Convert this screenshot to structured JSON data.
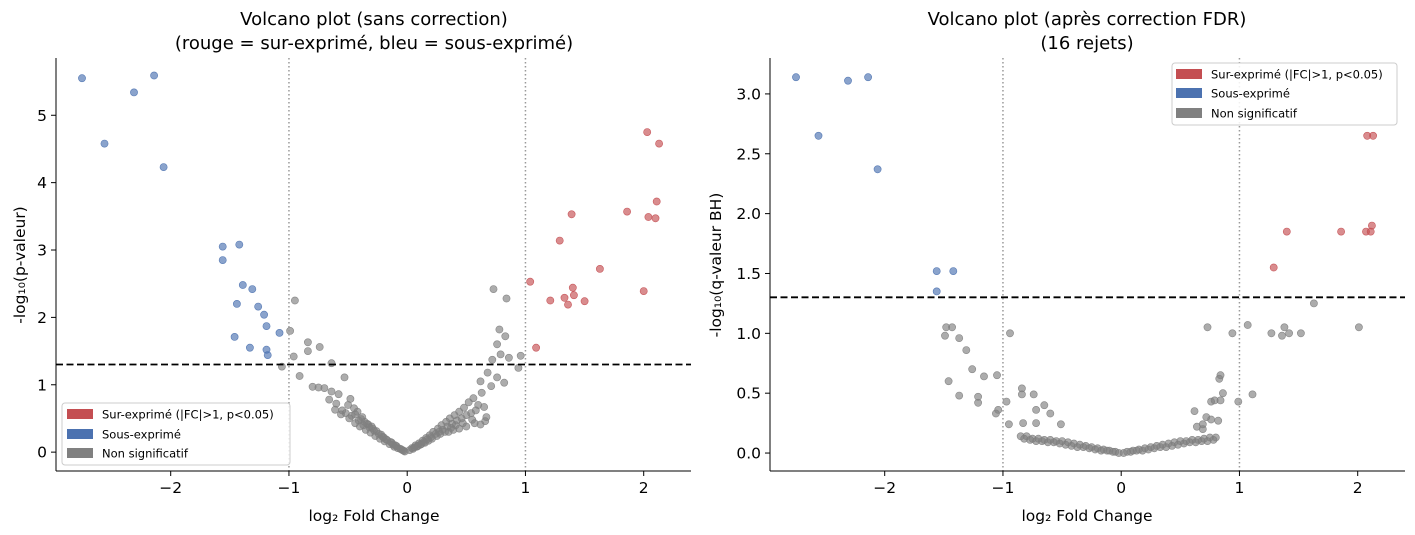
{
  "colors": {
    "up": "#c44e52",
    "down": "#4c72b0",
    "ns": "#808080"
  },
  "legend_labels": [
    "Sur-exprimé (|FC|>1, p<0.05)",
    "Sous-exprimé",
    "Non significatif"
  ],
  "chart_data": [
    {
      "type": "scatter",
      "title_lines": [
        "Volcano plot (sans correction)",
        "(rouge = sur-exprimé, bleu = sous-exprimé)"
      ],
      "xlabel": "log₂ Fold Change",
      "ylabel": "-log₁₀(p-valeur)",
      "xlim": [
        -2.97,
        2.4
      ],
      "ylim": [
        -0.28,
        5.85
      ],
      "xticks": [
        -2,
        -1,
        0,
        1,
        2
      ],
      "xtick_labels": [
        "−2",
        "−1",
        "0",
        "1",
        "2"
      ],
      "yticks": [
        0,
        1,
        2,
        3,
        4,
        5
      ],
      "ytick_labels": [
        "0",
        "1",
        "2",
        "3",
        "4",
        "5"
      ],
      "threshold_y": 1.301,
      "fc_lines": [
        -1,
        1
      ],
      "legend_position": "lower-left",
      "up": [
        [
          2.03,
          4.75
        ],
        [
          2.13,
          4.58
        ],
        [
          2.11,
          3.72
        ],
        [
          1.39,
          3.53
        ],
        [
          1.86,
          3.57
        ],
        [
          2.04,
          3.49
        ],
        [
          2.1,
          3.47
        ],
        [
          1.29,
          3.14
        ],
        [
          1.63,
          2.72
        ],
        [
          1.04,
          2.53
        ],
        [
          1.4,
          2.44
        ],
        [
          1.41,
          2.33
        ],
        [
          1.33,
          2.29
        ],
        [
          1.21,
          2.25
        ],
        [
          1.5,
          2.24
        ],
        [
          1.36,
          2.19
        ],
        [
          2.0,
          2.39
        ],
        [
          1.09,
          1.55
        ]
      ],
      "down": [
        [
          -2.75,
          5.55
        ],
        [
          -2.14,
          5.59
        ],
        [
          -2.31,
          5.34
        ],
        [
          -2.56,
          4.58
        ],
        [
          -2.06,
          4.23
        ],
        [
          -1.42,
          3.08
        ],
        [
          -1.56,
          3.05
        ],
        [
          -1.56,
          2.85
        ],
        [
          -1.39,
          2.48
        ],
        [
          -1.31,
          2.42
        ],
        [
          -1.44,
          2.2
        ],
        [
          -1.26,
          2.16
        ],
        [
          -1.21,
          2.04
        ],
        [
          -1.19,
          1.87
        ],
        [
          -1.46,
          1.71
        ],
        [
          -1.33,
          1.55
        ],
        [
          -1.19,
          1.52
        ],
        [
          -1.18,
          1.44
        ],
        [
          -1.08,
          1.77
        ]
      ],
      "ns": [
        [
          -0.95,
          2.25
        ],
        [
          -0.99,
          1.8
        ],
        [
          -0.96,
          1.42
        ],
        [
          -0.84,
          1.63
        ],
        [
          -0.74,
          1.56
        ],
        [
          -0.84,
          1.5
        ],
        [
          -0.64,
          1.32
        ],
        [
          -1.06,
          1.27
        ],
        [
          -0.91,
          1.13
        ],
        [
          -0.53,
          1.11
        ],
        [
          -0.8,
          0.97
        ],
        [
          -0.75,
          0.96
        ],
        [
          -0.7,
          0.95
        ],
        [
          -0.64,
          0.9
        ],
        [
          -0.58,
          0.86
        ],
        [
          -0.48,
          0.79
        ],
        [
          -0.66,
          0.78
        ],
        [
          -0.6,
          0.72
        ],
        [
          -0.42,
          0.6
        ],
        [
          -0.56,
          0.56
        ],
        [
          -0.49,
          0.5
        ],
        [
          -0.44,
          0.43
        ],
        [
          -0.4,
          0.38
        ],
        [
          -0.35,
          0.33
        ],
        [
          -0.31,
          0.29
        ],
        [
          -0.27,
          0.24
        ],
        [
          -0.23,
          0.2
        ],
        [
          -0.19,
          0.16
        ],
        [
          -0.15,
          0.12
        ],
        [
          -0.11,
          0.08
        ],
        [
          -0.08,
          0.06
        ],
        [
          -0.04,
          0.03
        ],
        [
          -0.02,
          0.01
        ],
        [
          -0.5,
          0.7
        ],
        [
          -0.45,
          0.65
        ],
        [
          -0.55,
          0.62
        ],
        [
          -0.38,
          0.52
        ],
        [
          -0.36,
          0.45
        ],
        [
          -0.33,
          0.41
        ],
        [
          -0.29,
          0.35
        ],
        [
          -0.26,
          0.31
        ],
        [
          -0.22,
          0.26
        ],
        [
          -0.2,
          0.22
        ],
        [
          -0.17,
          0.18
        ],
        [
          -0.13,
          0.14
        ],
        [
          -0.1,
          0.1
        ],
        [
          -0.06,
          0.05
        ],
        [
          -0.61,
          0.63
        ],
        [
          -0.52,
          0.58
        ],
        [
          -0.47,
          0.54
        ],
        [
          -0.41,
          0.47
        ],
        [
          -0.37,
          0.4
        ],
        [
          -0.32,
          0.37
        ],
        [
          -0.28,
          0.32
        ],
        [
          -0.24,
          0.27
        ],
        [
          -0.21,
          0.23
        ],
        [
          -0.18,
          0.19
        ],
        [
          -0.14,
          0.15
        ],
        [
          -0.12,
          0.11
        ],
        [
          -0.09,
          0.09
        ],
        [
          -0.05,
          0.04
        ],
        [
          -0.03,
          0.02
        ],
        [
          -0.44,
          0.56
        ],
        [
          -0.39,
          0.49
        ],
        [
          -0.34,
          0.42
        ],
        [
          -0.3,
          0.38
        ],
        [
          0.73,
          2.42
        ],
        [
          0.84,
          2.28
        ],
        [
          0.78,
          1.82
        ],
        [
          0.83,
          1.72
        ],
        [
          0.76,
          1.6
        ],
        [
          0.96,
          1.43
        ],
        [
          0.79,
          1.45
        ],
        [
          0.86,
          1.4
        ],
        [
          0.72,
          1.37
        ],
        [
          0.94,
          1.25
        ],
        [
          0.68,
          1.18
        ],
        [
          0.76,
          1.11
        ],
        [
          0.62,
          1.05
        ],
        [
          0.82,
          1.03
        ],
        [
          0.71,
          0.98
        ],
        [
          0.63,
          0.88
        ],
        [
          0.56,
          0.8
        ],
        [
          0.52,
          0.74
        ],
        [
          0.65,
          0.67
        ],
        [
          0.6,
          0.7
        ],
        [
          0.48,
          0.66
        ],
        [
          0.44,
          0.6
        ],
        [
          0.4,
          0.55
        ],
        [
          0.36,
          0.5
        ],
        [
          0.33,
          0.45
        ],
        [
          0.29,
          0.4
        ],
        [
          0.26,
          0.35
        ],
        [
          0.22,
          0.3
        ],
        [
          0.19,
          0.25
        ],
        [
          0.16,
          0.21
        ],
        [
          0.13,
          0.17
        ],
        [
          0.1,
          0.13
        ],
        [
          0.07,
          0.1
        ],
        [
          0.04,
          0.06
        ],
        [
          0.02,
          0.03
        ],
        [
          0.58,
          0.62
        ],
        [
          0.54,
          0.58
        ],
        [
          0.5,
          0.55
        ],
        [
          0.46,
          0.5
        ],
        [
          0.42,
          0.47
        ],
        [
          0.38,
          0.42
        ],
        [
          0.34,
          0.38
        ],
        [
          0.3,
          0.33
        ],
        [
          0.27,
          0.3
        ],
        [
          0.24,
          0.27
        ],
        [
          0.2,
          0.22
        ],
        [
          0.17,
          0.19
        ],
        [
          0.14,
          0.15
        ],
        [
          0.11,
          0.11
        ],
        [
          0.08,
          0.08
        ],
        [
          0.05,
          0.05
        ],
        [
          0.55,
          0.48
        ],
        [
          0.47,
          0.43
        ],
        [
          0.41,
          0.4
        ],
        [
          0.37,
          0.36
        ],
        [
          0.32,
          0.3
        ],
        [
          0.28,
          0.27
        ],
        [
          0.25,
          0.24
        ],
        [
          0.21,
          0.2
        ],
        [
          0.18,
          0.17
        ],
        [
          0.15,
          0.14
        ],
        [
          0.12,
          0.12
        ],
        [
          0.09,
          0.09
        ],
        [
          0.06,
          0.07
        ],
        [
          0.67,
          0.52
        ],
        [
          0.66,
          0.46
        ],
        [
          0.62,
          0.41
        ],
        [
          0.57,
          0.43
        ],
        [
          0.5,
          0.38
        ],
        [
          0.44,
          0.35
        ],
        [
          0.39,
          0.33
        ],
        [
          0.35,
          0.3
        ]
      ]
    },
    {
      "type": "scatter",
      "title_lines": [
        "Volcano plot (après correction FDR)",
        "(16 rejets)"
      ],
      "xlabel": "log₂ Fold Change",
      "ylabel": "-log₁₀(q-valeur BH)",
      "xlim": [
        -2.97,
        2.4
      ],
      "ylim": [
        -0.15,
        3.3
      ],
      "xticks": [
        -2,
        -1,
        0,
        1,
        2
      ],
      "xtick_labels": [
        "−2",
        "−1",
        "0",
        "1",
        "2"
      ],
      "yticks": [
        0,
        0.5,
        1,
        1.5,
        2,
        2.5,
        3
      ],
      "ytick_labels": [
        "0.0",
        "0.5",
        "1.0",
        "1.5",
        "2.0",
        "2.5",
        "3.0"
      ],
      "threshold_y": 1.301,
      "fc_lines": [
        -1,
        1
      ],
      "legend_position": "top-right",
      "up": [
        [
          2.08,
          2.65
        ],
        [
          2.13,
          2.65
        ],
        [
          2.12,
          1.9
        ],
        [
          2.07,
          1.85
        ],
        [
          2.11,
          1.85
        ],
        [
          1.4,
          1.85
        ],
        [
          1.86,
          1.85
        ],
        [
          1.29,
          1.55
        ]
      ],
      "down": [
        [
          -2.75,
          3.14
        ],
        [
          -2.14,
          3.14
        ],
        [
          -2.31,
          3.11
        ],
        [
          -2.56,
          2.65
        ],
        [
          -2.06,
          2.37
        ],
        [
          -1.56,
          1.52
        ],
        [
          -1.42,
          1.52
        ],
        [
          -1.56,
          1.35
        ]
      ],
      "ns": [
        [
          -1.48,
          1.05
        ],
        [
          -1.43,
          1.05
        ],
        [
          -1.49,
          0.98
        ],
        [
          -1.37,
          0.96
        ],
        [
          -1.31,
          0.86
        ],
        [
          -1.26,
          0.7
        ],
        [
          -0.94,
          1.0
        ],
        [
          -1.16,
          0.64
        ],
        [
          -1.05,
          0.65
        ],
        [
          -1.46,
          0.6
        ],
        [
          -1.21,
          0.47
        ],
        [
          -1.37,
          0.48
        ],
        [
          -1.21,
          0.42
        ],
        [
          -1.04,
          0.36
        ],
        [
          -1.06,
          0.33
        ],
        [
          -0.97,
          0.43
        ],
        [
          -0.84,
          0.54
        ],
        [
          -0.84,
          0.49
        ],
        [
          -0.74,
          0.49
        ],
        [
          -0.95,
          0.24
        ],
        [
          -0.83,
          0.25
        ],
        [
          -0.65,
          0.4
        ],
        [
          -0.72,
          0.36
        ],
        [
          -0.6,
          0.33
        ],
        [
          -0.72,
          0.25
        ],
        [
          -0.51,
          0.24
        ],
        [
          -0.85,
          0.14
        ],
        [
          -0.8,
          0.14
        ],
        [
          -0.75,
          0.12
        ],
        [
          -0.7,
          0.12
        ],
        [
          -0.65,
          0.11
        ],
        [
          -0.6,
          0.11
        ],
        [
          -0.55,
          0.1
        ],
        [
          -0.5,
          0.1
        ],
        [
          -0.45,
          0.09
        ],
        [
          -0.4,
          0.08
        ],
        [
          -0.35,
          0.07
        ],
        [
          -0.3,
          0.06
        ],
        [
          -0.25,
          0.05
        ],
        [
          -0.2,
          0.04
        ],
        [
          -0.15,
          0.03
        ],
        [
          -0.1,
          0.02
        ],
        [
          -0.05,
          0.01
        ],
        [
          -0.02,
          0.0
        ],
        [
          -0.82,
          0.12
        ],
        [
          -0.77,
          0.11
        ],
        [
          -0.72,
          0.1
        ],
        [
          -0.67,
          0.1
        ],
        [
          -0.62,
          0.09
        ],
        [
          -0.57,
          0.09
        ],
        [
          -0.52,
          0.08
        ],
        [
          -0.47,
          0.07
        ],
        [
          -0.42,
          0.06
        ],
        [
          -0.37,
          0.05
        ],
        [
          -0.32,
          0.05
        ],
        [
          -0.27,
          0.04
        ],
        [
          -0.22,
          0.03
        ],
        [
          -0.17,
          0.02
        ],
        [
          -0.12,
          0.02
        ],
        [
          -0.07,
          0.01
        ],
        [
          0.73,
          1.05
        ],
        [
          1.07,
          1.07
        ],
        [
          1.27,
          1.0
        ],
        [
          1.38,
          1.05
        ],
        [
          1.36,
          0.98
        ],
        [
          1.42,
          1.0
        ],
        [
          1.52,
          1.0
        ],
        [
          1.63,
          1.25
        ],
        [
          2.01,
          1.05
        ],
        [
          0.94,
          1.0
        ],
        [
          0.84,
          0.65
        ],
        [
          0.83,
          0.62
        ],
        [
          0.86,
          0.5
        ],
        [
          0.84,
          0.44
        ],
        [
          0.79,
          0.44
        ],
        [
          0.76,
          0.43
        ],
        [
          0.99,
          0.43
        ],
        [
          1.11,
          0.49
        ],
        [
          0.72,
          0.3
        ],
        [
          0.76,
          0.28
        ],
        [
          0.82,
          0.27
        ],
        [
          0.69,
          0.24
        ],
        [
          0.8,
          0.13
        ],
        [
          0.75,
          0.13
        ],
        [
          0.7,
          0.12
        ],
        [
          0.65,
          0.11
        ],
        [
          0.6,
          0.11
        ],
        [
          0.55,
          0.1
        ],
        [
          0.5,
          0.1
        ],
        [
          0.45,
          0.09
        ],
        [
          0.4,
          0.08
        ],
        [
          0.35,
          0.07
        ],
        [
          0.3,
          0.06
        ],
        [
          0.25,
          0.05
        ],
        [
          0.2,
          0.04
        ],
        [
          0.15,
          0.03
        ],
        [
          0.1,
          0.02
        ],
        [
          0.05,
          0.01
        ],
        [
          0.02,
          0.0
        ],
        [
          0.78,
          0.11
        ],
        [
          0.73,
          0.1
        ],
        [
          0.68,
          0.1
        ],
        [
          0.63,
          0.09
        ],
        [
          0.58,
          0.09
        ],
        [
          0.53,
          0.08
        ],
        [
          0.48,
          0.07
        ],
        [
          0.43,
          0.06
        ],
        [
          0.38,
          0.05
        ],
        [
          0.33,
          0.05
        ],
        [
          0.28,
          0.04
        ],
        [
          0.23,
          0.03
        ],
        [
          0.18,
          0.02
        ],
        [
          0.13,
          0.02
        ],
        [
          0.08,
          0.01
        ],
        [
          0.62,
          0.35
        ],
        [
          0.64,
          0.22
        ],
        [
          0.69,
          0.2
        ]
      ]
    }
  ]
}
